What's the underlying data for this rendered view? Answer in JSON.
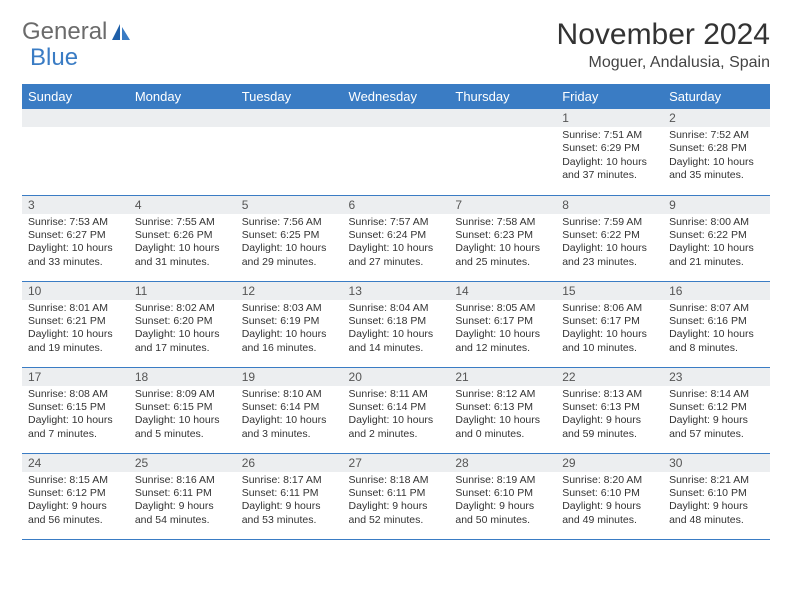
{
  "brand": {
    "part1": "General",
    "part2": "Blue"
  },
  "title": "November 2024",
  "location": "Moguer, Andalusia, Spain",
  "colors": {
    "header_bg": "#3a7cc4",
    "header_text": "#ffffff",
    "daynum_bg": "#eceef0",
    "border": "#3a7cc4",
    "body_text": "#333333",
    "brand_gray": "#6b6b6b",
    "brand_blue": "#3a7cc4"
  },
  "daynames": [
    "Sunday",
    "Monday",
    "Tuesday",
    "Wednesday",
    "Thursday",
    "Friday",
    "Saturday"
  ],
  "weeks": [
    [
      null,
      null,
      null,
      null,
      null,
      {
        "n": "1",
        "sr": "Sunrise: 7:51 AM",
        "ss": "Sunset: 6:29 PM",
        "dl1": "Daylight: 10 hours",
        "dl2": "and 37 minutes."
      },
      {
        "n": "2",
        "sr": "Sunrise: 7:52 AM",
        "ss": "Sunset: 6:28 PM",
        "dl1": "Daylight: 10 hours",
        "dl2": "and 35 minutes."
      }
    ],
    [
      {
        "n": "3",
        "sr": "Sunrise: 7:53 AM",
        "ss": "Sunset: 6:27 PM",
        "dl1": "Daylight: 10 hours",
        "dl2": "and 33 minutes."
      },
      {
        "n": "4",
        "sr": "Sunrise: 7:55 AM",
        "ss": "Sunset: 6:26 PM",
        "dl1": "Daylight: 10 hours",
        "dl2": "and 31 minutes."
      },
      {
        "n": "5",
        "sr": "Sunrise: 7:56 AM",
        "ss": "Sunset: 6:25 PM",
        "dl1": "Daylight: 10 hours",
        "dl2": "and 29 minutes."
      },
      {
        "n": "6",
        "sr": "Sunrise: 7:57 AM",
        "ss": "Sunset: 6:24 PM",
        "dl1": "Daylight: 10 hours",
        "dl2": "and 27 minutes."
      },
      {
        "n": "7",
        "sr": "Sunrise: 7:58 AM",
        "ss": "Sunset: 6:23 PM",
        "dl1": "Daylight: 10 hours",
        "dl2": "and 25 minutes."
      },
      {
        "n": "8",
        "sr": "Sunrise: 7:59 AM",
        "ss": "Sunset: 6:22 PM",
        "dl1": "Daylight: 10 hours",
        "dl2": "and 23 minutes."
      },
      {
        "n": "9",
        "sr": "Sunrise: 8:00 AM",
        "ss": "Sunset: 6:22 PM",
        "dl1": "Daylight: 10 hours",
        "dl2": "and 21 minutes."
      }
    ],
    [
      {
        "n": "10",
        "sr": "Sunrise: 8:01 AM",
        "ss": "Sunset: 6:21 PM",
        "dl1": "Daylight: 10 hours",
        "dl2": "and 19 minutes."
      },
      {
        "n": "11",
        "sr": "Sunrise: 8:02 AM",
        "ss": "Sunset: 6:20 PM",
        "dl1": "Daylight: 10 hours",
        "dl2": "and 17 minutes."
      },
      {
        "n": "12",
        "sr": "Sunrise: 8:03 AM",
        "ss": "Sunset: 6:19 PM",
        "dl1": "Daylight: 10 hours",
        "dl2": "and 16 minutes."
      },
      {
        "n": "13",
        "sr": "Sunrise: 8:04 AM",
        "ss": "Sunset: 6:18 PM",
        "dl1": "Daylight: 10 hours",
        "dl2": "and 14 minutes."
      },
      {
        "n": "14",
        "sr": "Sunrise: 8:05 AM",
        "ss": "Sunset: 6:17 PM",
        "dl1": "Daylight: 10 hours",
        "dl2": "and 12 minutes."
      },
      {
        "n": "15",
        "sr": "Sunrise: 8:06 AM",
        "ss": "Sunset: 6:17 PM",
        "dl1": "Daylight: 10 hours",
        "dl2": "and 10 minutes."
      },
      {
        "n": "16",
        "sr": "Sunrise: 8:07 AM",
        "ss": "Sunset: 6:16 PM",
        "dl1": "Daylight: 10 hours",
        "dl2": "and 8 minutes."
      }
    ],
    [
      {
        "n": "17",
        "sr": "Sunrise: 8:08 AM",
        "ss": "Sunset: 6:15 PM",
        "dl1": "Daylight: 10 hours",
        "dl2": "and 7 minutes."
      },
      {
        "n": "18",
        "sr": "Sunrise: 8:09 AM",
        "ss": "Sunset: 6:15 PM",
        "dl1": "Daylight: 10 hours",
        "dl2": "and 5 minutes."
      },
      {
        "n": "19",
        "sr": "Sunrise: 8:10 AM",
        "ss": "Sunset: 6:14 PM",
        "dl1": "Daylight: 10 hours",
        "dl2": "and 3 minutes."
      },
      {
        "n": "20",
        "sr": "Sunrise: 8:11 AM",
        "ss": "Sunset: 6:14 PM",
        "dl1": "Daylight: 10 hours",
        "dl2": "and 2 minutes."
      },
      {
        "n": "21",
        "sr": "Sunrise: 8:12 AM",
        "ss": "Sunset: 6:13 PM",
        "dl1": "Daylight: 10 hours",
        "dl2": "and 0 minutes."
      },
      {
        "n": "22",
        "sr": "Sunrise: 8:13 AM",
        "ss": "Sunset: 6:13 PM",
        "dl1": "Daylight: 9 hours",
        "dl2": "and 59 minutes."
      },
      {
        "n": "23",
        "sr": "Sunrise: 8:14 AM",
        "ss": "Sunset: 6:12 PM",
        "dl1": "Daylight: 9 hours",
        "dl2": "and 57 minutes."
      }
    ],
    [
      {
        "n": "24",
        "sr": "Sunrise: 8:15 AM",
        "ss": "Sunset: 6:12 PM",
        "dl1": "Daylight: 9 hours",
        "dl2": "and 56 minutes."
      },
      {
        "n": "25",
        "sr": "Sunrise: 8:16 AM",
        "ss": "Sunset: 6:11 PM",
        "dl1": "Daylight: 9 hours",
        "dl2": "and 54 minutes."
      },
      {
        "n": "26",
        "sr": "Sunrise: 8:17 AM",
        "ss": "Sunset: 6:11 PM",
        "dl1": "Daylight: 9 hours",
        "dl2": "and 53 minutes."
      },
      {
        "n": "27",
        "sr": "Sunrise: 8:18 AM",
        "ss": "Sunset: 6:11 PM",
        "dl1": "Daylight: 9 hours",
        "dl2": "and 52 minutes."
      },
      {
        "n": "28",
        "sr": "Sunrise: 8:19 AM",
        "ss": "Sunset: 6:10 PM",
        "dl1": "Daylight: 9 hours",
        "dl2": "and 50 minutes."
      },
      {
        "n": "29",
        "sr": "Sunrise: 8:20 AM",
        "ss": "Sunset: 6:10 PM",
        "dl1": "Daylight: 9 hours",
        "dl2": "and 49 minutes."
      },
      {
        "n": "30",
        "sr": "Sunrise: 8:21 AM",
        "ss": "Sunset: 6:10 PM",
        "dl1": "Daylight: 9 hours",
        "dl2": "and 48 minutes."
      }
    ]
  ]
}
